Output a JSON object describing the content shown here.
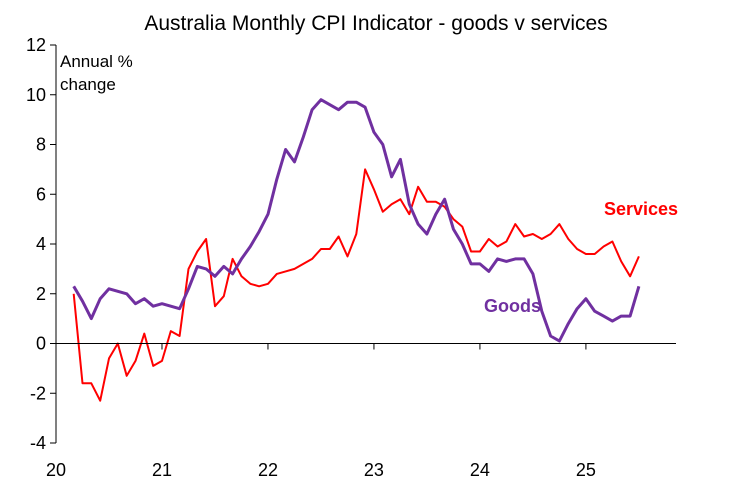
{
  "chart_data": {
    "type": "line",
    "title": "Australia Monthly CPI Indicator - goods v services",
    "ylabel_lines": [
      "Annual %",
      "change"
    ],
    "ylim": [
      -4,
      12
    ],
    "yticks": [
      -4,
      -2,
      0,
      2,
      4,
      6,
      8,
      10,
      12
    ],
    "xlim": [
      2020.0,
      2025.85
    ],
    "xticks": [
      {
        "value": 2020,
        "label": "20"
      },
      {
        "value": 2021,
        "label": "21"
      },
      {
        "value": 2022,
        "label": "22"
      },
      {
        "value": 2023,
        "label": "23"
      },
      {
        "value": 2024,
        "label": "24"
      },
      {
        "value": 2025,
        "label": "25"
      }
    ],
    "grid": false,
    "start": {
      "year": 2020,
      "month": 3
    },
    "series": [
      {
        "name": "Services",
        "color": "#ff0000",
        "values": [
          2.0,
          -1.6,
          -1.6,
          -2.3,
          -0.6,
          0.0,
          -1.3,
          -0.7,
          0.4,
          -0.9,
          -0.7,
          0.5,
          0.3,
          3.0,
          3.7,
          4.2,
          1.5,
          1.9,
          3.4,
          2.7,
          2.4,
          2.3,
          2.4,
          2.8,
          2.9,
          3.0,
          3.2,
          3.4,
          3.8,
          3.8,
          4.3,
          3.5,
          4.4,
          7.0,
          6.2,
          5.3,
          5.6,
          5.8,
          5.2,
          6.3,
          5.7,
          5.7,
          5.5,
          5.0,
          4.7,
          3.7,
          3.7,
          4.2,
          3.9,
          4.1,
          4.8,
          4.3,
          4.4,
          4.2,
          4.4,
          4.8,
          4.2,
          3.8,
          3.6,
          3.6,
          3.9,
          4.1,
          3.3,
          2.7,
          3.5
        ]
      },
      {
        "name": "Goods",
        "color": "#7030a0",
        "values": [
          2.3,
          1.7,
          1.0,
          1.8,
          2.2,
          2.1,
          2.0,
          1.6,
          1.8,
          1.5,
          1.6,
          1.5,
          1.4,
          2.2,
          3.1,
          3.0,
          2.7,
          3.1,
          2.8,
          3.4,
          3.9,
          4.5,
          5.2,
          6.6,
          7.8,
          7.3,
          8.3,
          9.4,
          9.8,
          9.6,
          9.4,
          9.7,
          9.7,
          9.5,
          8.5,
          8.0,
          6.7,
          7.4,
          5.6,
          4.8,
          4.4,
          5.2,
          5.8,
          4.6,
          4.0,
          3.2,
          3.2,
          2.9,
          3.4,
          3.3,
          3.4,
          3.4,
          2.8,
          1.3,
          0.3,
          0.1,
          0.8,
          1.4,
          1.8,
          1.3,
          1.1,
          0.9,
          1.1,
          1.1,
          2.3
        ]
      }
    ],
    "annotations": [
      {
        "text": "Services",
        "color": "#ff0000"
      },
      {
        "text": "Goods",
        "color": "#7030a0"
      }
    ]
  }
}
